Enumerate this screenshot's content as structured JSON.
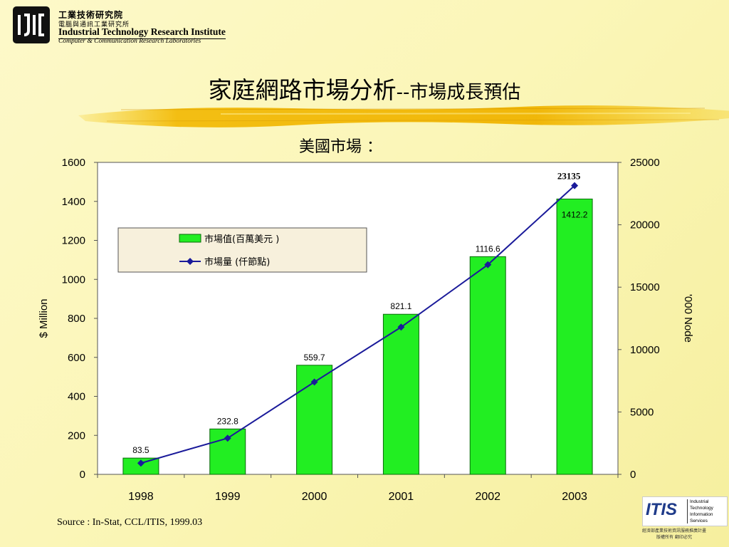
{
  "header": {
    "org_cn": "工業技術研究院",
    "dept_cn": "電腦與通訊工業研究所",
    "org_en": "Industrial Technology Research Institute",
    "dept_en": "Computer & Communication Research Laboratories"
  },
  "slide": {
    "title_main": "家庭網路市場分析",
    "title_sub": "--市場成長預估",
    "subtitle": "美國市場 ："
  },
  "source": "Source : In-Stat, CCL/ITIS, 1999.03",
  "itis_logo": {
    "mark": "ITIS",
    "words": [
      "Industrial",
      "Technology",
      "Information",
      "Services"
    ],
    "footer_line1": "經濟部產業技術資訊服務推廣計畫",
    "footer_line2": "版權所有 翻印必究"
  },
  "colors": {
    "bar": "#22ee22",
    "bar_stroke": "#0a6a0a",
    "line": "#1a1a9a",
    "legend_bg": "#f7f0dc",
    "background": "#fbf6b8"
  },
  "chart_data": {
    "type": "bar",
    "categories": [
      "1998",
      "1999",
      "2000",
      "2001",
      "2002",
      "2003"
    ],
    "series": [
      {
        "name": "市場值(百萬美元 )",
        "axis": "left",
        "kind": "bar",
        "values": [
          83.5,
          232.8,
          559.7,
          821.1,
          1116.6,
          1412.2
        ],
        "labels": [
          "83.5",
          "232.8",
          "559.7",
          "821.1",
          "1116.6",
          "1412.2"
        ]
      },
      {
        "name": "市場量  (仟節點)",
        "axis": "right",
        "kind": "line",
        "marker": "diamond",
        "values": [
          900,
          2900,
          7400,
          11800,
          16800,
          23135
        ],
        "end_label": "23135"
      }
    ],
    "ylabel": "$  Million",
    "y2label": "'000 Node",
    "ylim": [
      0,
      1600
    ],
    "y2lim": [
      0,
      25000
    ],
    "yticks": [
      "0",
      "200",
      "400",
      "600",
      "800",
      "1000",
      "1200",
      "1400",
      "1600"
    ],
    "y2ticks": [
      "0",
      "5000",
      "10000",
      "15000",
      "20000",
      "25000"
    ],
    "legend": "top-left inside plot",
    "grid": false
  }
}
